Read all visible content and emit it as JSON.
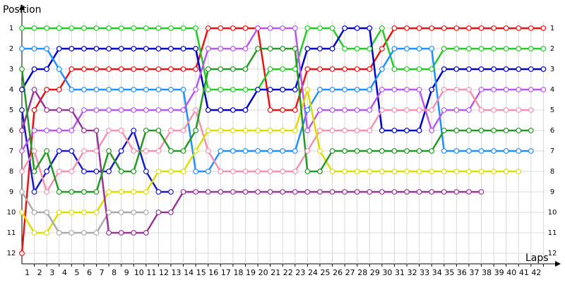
{
  "chart_data": {
    "type": "line",
    "y_label": "Position",
    "x_label": "Laps",
    "x": [
      0,
      1,
      2,
      3,
      4,
      5,
      6,
      7,
      8,
      9,
      10,
      11,
      12,
      13,
      14,
      15,
      16,
      17,
      18,
      19,
      20,
      21,
      22,
      23,
      24,
      25,
      26,
      27,
      28,
      29,
      30,
      31,
      32,
      33,
      34,
      35,
      36,
      37,
      38,
      39,
      40,
      41,
      42
    ],
    "xlim": [
      0,
      43
    ],
    "xticks": [
      1,
      2,
      3,
      4,
      5,
      6,
      7,
      8,
      9,
      10,
      11,
      12,
      13,
      14,
      15,
      16,
      17,
      18,
      19,
      20,
      21,
      22,
      23,
      24,
      25,
      26,
      27,
      28,
      29,
      30,
      31,
      32,
      33,
      34,
      35,
      36,
      37,
      38,
      39,
      40,
      41,
      42
    ],
    "ylim": [
      12.5,
      0
    ],
    "yticks": [
      1,
      2,
      3,
      4,
      5,
      6,
      7,
      8,
      9,
      10,
      11,
      12
    ],
    "grid": true,
    "series": [
      {
        "color": "#ee1111",
        "values": [
          12,
          5,
          4,
          4,
          3,
          3,
          3,
          3,
          3,
          3,
          3,
          3,
          3,
          3,
          3,
          1,
          1,
          1,
          1,
          1,
          5,
          5,
          5,
          3,
          3,
          3,
          3,
          3,
          3,
          2,
          1,
          1,
          1,
          1,
          1,
          1,
          1,
          1,
          1,
          1,
          1,
          1,
          1
        ]
      },
      {
        "color": "#22cc22",
        "values": [
          1,
          1,
          1,
          1,
          1,
          1,
          1,
          1,
          1,
          1,
          1,
          1,
          1,
          1,
          1,
          4,
          4,
          4,
          4,
          4,
          3,
          3,
          3,
          1,
          1,
          1,
          2,
          2,
          2,
          1,
          3,
          3,
          3,
          3,
          2,
          2,
          2,
          2,
          2,
          2,
          2,
          2,
          2
        ]
      },
      {
        "color": "#0000cc",
        "values": [
          4,
          3,
          3,
          2,
          2,
          2,
          2,
          2,
          2,
          2,
          2,
          2,
          2,
          2,
          2,
          5,
          5,
          5,
          5,
          4,
          4,
          4,
          4,
          2,
          2,
          2,
          1,
          1,
          1,
          6,
          6,
          6,
          6,
          4,
          3,
          3,
          3,
          3,
          3,
          3,
          3,
          3,
          3
        ]
      },
      {
        "color": "#1a1acc",
        "values": [
          5,
          9,
          8,
          7,
          7,
          8,
          8,
          8,
          7,
          6,
          8,
          9,
          9,
          null,
          null,
          null,
          null,
          null,
          null,
          null,
          null,
          null,
          null,
          null,
          null,
          null,
          null,
          null,
          null,
          null,
          null,
          null,
          null,
          null,
          null,
          null,
          null,
          null,
          null,
          null,
          null,
          null,
          null
        ]
      },
      {
        "color": "#1e90ff",
        "values": [
          2,
          2,
          2,
          3,
          4,
          4,
          4,
          4,
          4,
          4,
          4,
          4,
          4,
          4,
          8,
          8,
          7,
          7,
          7,
          7,
          7,
          7,
          7,
          5,
          4,
          4,
          4,
          4,
          4,
          3,
          2,
          2,
          2,
          2,
          7,
          7,
          7,
          7,
          7,
          7,
          7,
          7,
          null
        ]
      },
      {
        "color": "#bb55ee",
        "values": [
          7,
          6,
          6,
          6,
          6,
          5,
          5,
          5,
          5,
          5,
          5,
          5,
          5,
          5,
          4,
          2,
          2,
          2,
          2,
          1,
          1,
          1,
          1,
          6,
          5,
          5,
          5,
          5,
          5,
          4,
          4,
          4,
          4,
          6,
          5,
          5,
          5,
          4,
          4,
          4,
          4,
          4,
          4
        ]
      },
      {
        "color": "#f590b0",
        "values": [
          8,
          7,
          9,
          8,
          8,
          7,
          7,
          6,
          6,
          7,
          7,
          7,
          6,
          6,
          5,
          7,
          8,
          8,
          8,
          8,
          8,
          8,
          8,
          7,
          6,
          6,
          6,
          6,
          6,
          5,
          5,
          5,
          5,
          5,
          4,
          4,
          4,
          5,
          5,
          5,
          5,
          5,
          null
        ]
      },
      {
        "color": "#dddd00",
        "values": [
          10,
          11,
          11,
          10,
          10,
          10,
          10,
          9,
          9,
          9,
          9,
          8,
          8,
          8,
          7,
          6,
          6,
          6,
          6,
          6,
          6,
          6,
          6,
          4,
          7,
          8,
          8,
          8,
          8,
          8,
          8,
          8,
          8,
          8,
          8,
          8,
          8,
          8,
          8,
          8,
          8,
          null,
          null
        ]
      },
      {
        "color": "#aaaaaa",
        "values": [
          9,
          10,
          10,
          11,
          11,
          11,
          11,
          10,
          10,
          10,
          10,
          null,
          null,
          null,
          null,
          null,
          null,
          null,
          null,
          null,
          null,
          null,
          null,
          null,
          null,
          null,
          null,
          null,
          null,
          null,
          null,
          null,
          null,
          null,
          null,
          null,
          null,
          null,
          null,
          null,
          null,
          null,
          null
        ]
      },
      {
        "color": "#993399",
        "values": [
          6,
          4,
          5,
          5,
          5,
          6,
          6,
          11,
          11,
          11,
          11,
          10,
          10,
          9,
          9,
          9,
          9,
          9,
          9,
          9,
          9,
          9,
          9,
          9,
          9,
          9,
          9,
          9,
          9,
          9,
          9,
          9,
          9,
          9,
          9,
          9,
          9,
          9,
          null,
          null,
          null,
          null,
          null
        ]
      },
      {
        "color": "#229922",
        "values": [
          3,
          8,
          7,
          9,
          9,
          9,
          9,
          7,
          8,
          8,
          6,
          6,
          7,
          7,
          6,
          3,
          3,
          3,
          3,
          2,
          2,
          2,
          2,
          8,
          8,
          7,
          7,
          7,
          7,
          7,
          7,
          7,
          7,
          7,
          6,
          6,
          6,
          6,
          6,
          6,
          6,
          6,
          null
        ]
      }
    ]
  }
}
